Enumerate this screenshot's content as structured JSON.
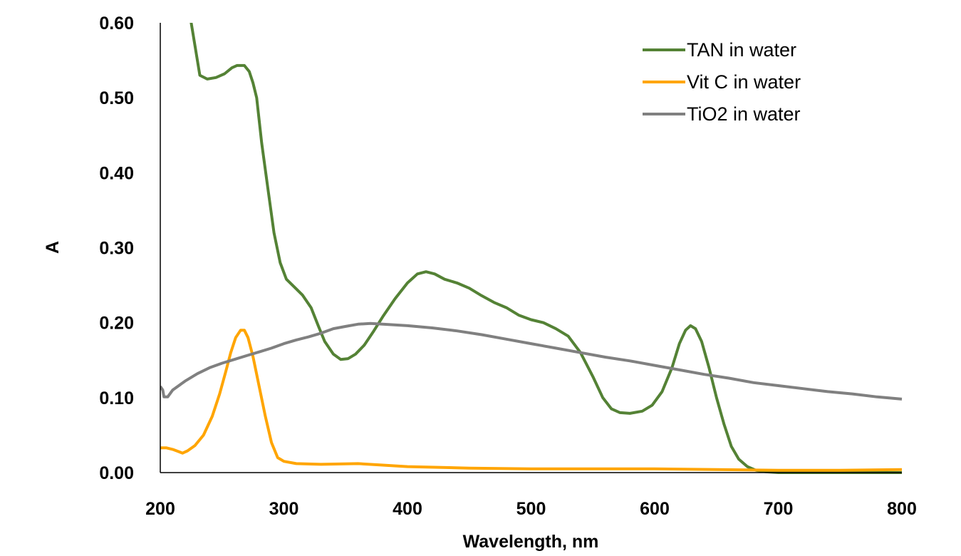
{
  "chart_data": {
    "type": "line",
    "title": "",
    "xlabel": "Wavelength, nm",
    "ylabel": "A",
    "xlim": [
      200,
      800
    ],
    "ylim": [
      0,
      0.6
    ],
    "x_ticks": [
      "200",
      "300",
      "400",
      "500",
      "600",
      "700",
      "800"
    ],
    "y_ticks": [
      "0.00",
      "0.10",
      "0.20",
      "0.30",
      "0.40",
      "0.50",
      "0.60"
    ],
    "grid": false,
    "legend_position": "top-right",
    "series": [
      {
        "name": "TAN in water",
        "color": "#548235",
        "points": [
          [
            220,
            0.62
          ],
          [
            225,
            0.6
          ],
          [
            228,
            0.57
          ],
          [
            232,
            0.53
          ],
          [
            238,
            0.525
          ],
          [
            245,
            0.527
          ],
          [
            252,
            0.532
          ],
          [
            258,
            0.54
          ],
          [
            262,
            0.543
          ],
          [
            268,
            0.543
          ],
          [
            272,
            0.535
          ],
          [
            275,
            0.52
          ],
          [
            278,
            0.5
          ],
          [
            282,
            0.44
          ],
          [
            287,
            0.38
          ],
          [
            292,
            0.32
          ],
          [
            297,
            0.28
          ],
          [
            302,
            0.258
          ],
          [
            310,
            0.245
          ],
          [
            315,
            0.237
          ],
          [
            322,
            0.22
          ],
          [
            328,
            0.195
          ],
          [
            333,
            0.175
          ],
          [
            340,
            0.158
          ],
          [
            346,
            0.151
          ],
          [
            352,
            0.152
          ],
          [
            358,
            0.158
          ],
          [
            365,
            0.17
          ],
          [
            372,
            0.187
          ],
          [
            380,
            0.208
          ],
          [
            390,
            0.232
          ],
          [
            400,
            0.253
          ],
          [
            408,
            0.265
          ],
          [
            415,
            0.268
          ],
          [
            422,
            0.265
          ],
          [
            430,
            0.258
          ],
          [
            440,
            0.253
          ],
          [
            450,
            0.246
          ],
          [
            460,
            0.236
          ],
          [
            470,
            0.227
          ],
          [
            480,
            0.22
          ],
          [
            490,
            0.21
          ],
          [
            500,
            0.204
          ],
          [
            510,
            0.2
          ],
          [
            520,
            0.192
          ],
          [
            530,
            0.182
          ],
          [
            540,
            0.16
          ],
          [
            550,
            0.128
          ],
          [
            558,
            0.1
          ],
          [
            565,
            0.085
          ],
          [
            572,
            0.08
          ],
          [
            580,
            0.079
          ],
          [
            590,
            0.082
          ],
          [
            598,
            0.09
          ],
          [
            606,
            0.108
          ],
          [
            614,
            0.14
          ],
          [
            620,
            0.172
          ],
          [
            625,
            0.19
          ],
          [
            629,
            0.196
          ],
          [
            633,
            0.192
          ],
          [
            638,
            0.175
          ],
          [
            644,
            0.14
          ],
          [
            650,
            0.1
          ],
          [
            656,
            0.065
          ],
          [
            662,
            0.035
          ],
          [
            668,
            0.018
          ],
          [
            675,
            0.008
          ],
          [
            682,
            0.003
          ],
          [
            690,
            0.001
          ],
          [
            700,
            0.0
          ],
          [
            750,
            0.0
          ],
          [
            800,
            0.0
          ]
        ]
      },
      {
        "name": "Vit C in water",
        "color": "#FFA500",
        "points": [
          [
            200,
            0.033
          ],
          [
            205,
            0.033
          ],
          [
            210,
            0.031
          ],
          [
            215,
            0.028
          ],
          [
            218,
            0.026
          ],
          [
            222,
            0.029
          ],
          [
            228,
            0.036
          ],
          [
            235,
            0.05
          ],
          [
            242,
            0.075
          ],
          [
            248,
            0.105
          ],
          [
            253,
            0.135
          ],
          [
            257,
            0.16
          ],
          [
            261,
            0.18
          ],
          [
            265,
            0.19
          ],
          [
            268,
            0.19
          ],
          [
            271,
            0.18
          ],
          [
            275,
            0.155
          ],
          [
            280,
            0.115
          ],
          [
            285,
            0.075
          ],
          [
            290,
            0.04
          ],
          [
            295,
            0.02
          ],
          [
            300,
            0.015
          ],
          [
            310,
            0.012
          ],
          [
            330,
            0.011
          ],
          [
            360,
            0.012
          ],
          [
            380,
            0.01
          ],
          [
            400,
            0.008
          ],
          [
            450,
            0.006
          ],
          [
            500,
            0.005
          ],
          [
            550,
            0.005
          ],
          [
            600,
            0.005
          ],
          [
            650,
            0.004
          ],
          [
            700,
            0.003
          ],
          [
            750,
            0.003
          ],
          [
            800,
            0.004
          ]
        ]
      },
      {
        "name": "TiO2 in water",
        "color": "#808080",
        "points": [
          [
            200,
            0.115
          ],
          [
            202,
            0.11
          ],
          [
            203,
            0.101
          ],
          [
            206,
            0.101
          ],
          [
            210,
            0.11
          ],
          [
            220,
            0.122
          ],
          [
            230,
            0.132
          ],
          [
            240,
            0.14
          ],
          [
            250,
            0.146
          ],
          [
            260,
            0.151
          ],
          [
            270,
            0.156
          ],
          [
            280,
            0.161
          ],
          [
            290,
            0.166
          ],
          [
            300,
            0.172
          ],
          [
            310,
            0.177
          ],
          [
            320,
            0.181
          ],
          [
            330,
            0.186
          ],
          [
            340,
            0.192
          ],
          [
            350,
            0.195
          ],
          [
            360,
            0.198
          ],
          [
            370,
            0.199
          ],
          [
            380,
            0.198
          ],
          [
            400,
            0.196
          ],
          [
            420,
            0.193
          ],
          [
            440,
            0.189
          ],
          [
            460,
            0.184
          ],
          [
            480,
            0.178
          ],
          [
            500,
            0.172
          ],
          [
            520,
            0.166
          ],
          [
            540,
            0.16
          ],
          [
            560,
            0.154
          ],
          [
            580,
            0.149
          ],
          [
            600,
            0.143
          ],
          [
            620,
            0.137
          ],
          [
            640,
            0.131
          ],
          [
            660,
            0.126
          ],
          [
            680,
            0.12
          ],
          [
            700,
            0.116
          ],
          [
            720,
            0.112
          ],
          [
            740,
            0.108
          ],
          [
            760,
            0.105
          ],
          [
            780,
            0.101
          ],
          [
            800,
            0.098
          ]
        ]
      }
    ]
  }
}
